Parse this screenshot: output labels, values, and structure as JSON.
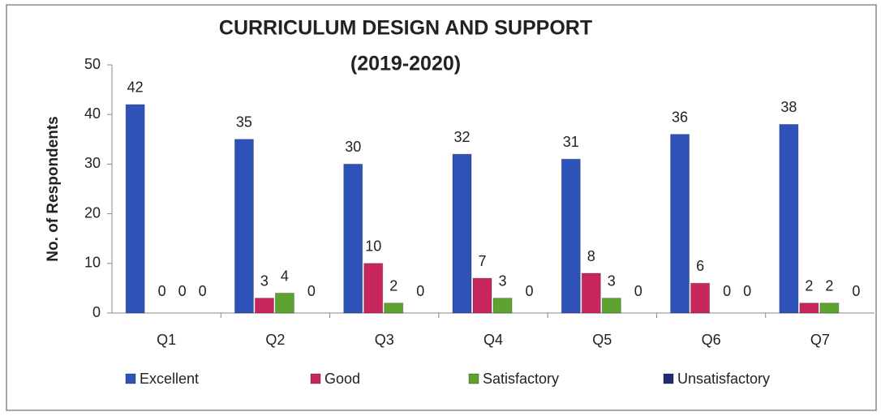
{
  "chart_data": {
    "type": "bar",
    "title": "CURRICULUM DESIGN AND SUPPORT",
    "subtitle": "(2019-2020)",
    "y_label": "No. of Respondents",
    "categories": [
      "Q1",
      "Q2",
      "Q3",
      "Q4",
      "Q5",
      "Q6",
      "Q7"
    ],
    "series": [
      {
        "name": "Excellent",
        "color": "#2f52b8",
        "values": [
          42,
          35,
          30,
          32,
          31,
          36,
          38
        ]
      },
      {
        "name": "Good",
        "color": "#c8265e",
        "values": [
          0,
          3,
          10,
          7,
          8,
          6,
          2
        ]
      },
      {
        "name": "Satisfactory",
        "color": "#5ea32f",
        "values": [
          0,
          4,
          2,
          3,
          3,
          0,
          2
        ]
      },
      {
        "name": "Unsatisfactory",
        "color": "#1f2a70",
        "values": [
          0,
          0,
          0,
          0,
          0,
          0,
          0
        ]
      }
    ],
    "ylim": [
      0,
      50
    ],
    "yticks": [
      0,
      10,
      20,
      30,
      40,
      50
    ],
    "grid": false,
    "legend": "bottom"
  }
}
